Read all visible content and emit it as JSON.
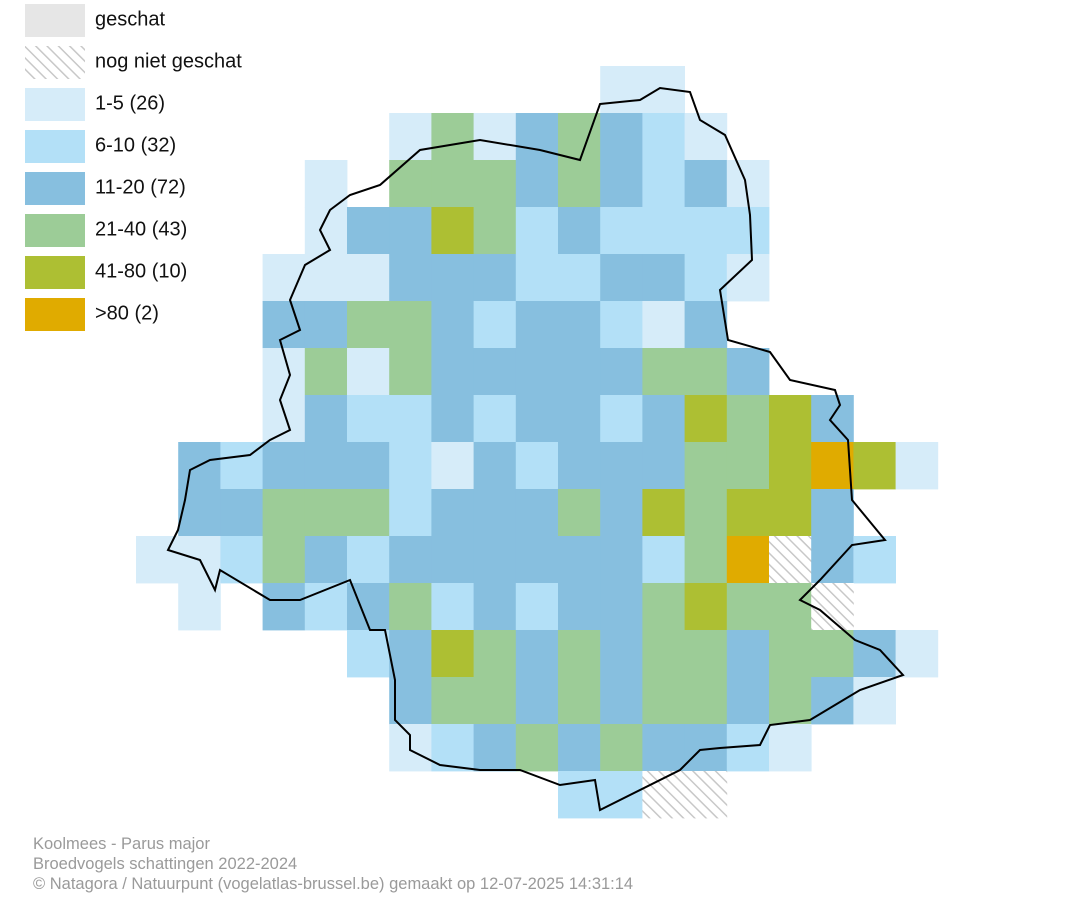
{
  "legend": {
    "items": [
      "geschat",
      "nog niet geschat",
      "1-5 (26)",
      "6-10 (32)",
      "11-20 (72)",
      "21-40 (43)",
      "41-80 (10)",
      ">80 (2)"
    ]
  },
  "footer": {
    "lines": [
      "Koolmees - Parus major",
      "Broedvogels schattingen 2022-2024",
      "© Natagora / Natuurpunt (vogelatlas-brussel.be) gemaakt op 12-07-2025 14:31:14"
    ]
  }
}
